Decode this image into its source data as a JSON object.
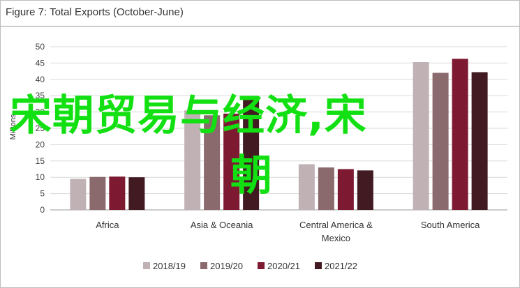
{
  "chart_data": {
    "type": "bar",
    "title": "Figure 7: Total Exports (October-June)",
    "ylabel": "Millions",
    "ylim": [
      0,
      50
    ],
    "yticks": [
      0,
      5,
      10,
      15,
      20,
      25,
      30,
      35,
      40,
      45,
      50
    ],
    "grid": true,
    "legend_position": "bottom",
    "categories": [
      "Africa",
      "Asia & Oceania",
      "Central America & Mexico",
      "South America"
    ],
    "category_lines": [
      [
        "Africa"
      ],
      [
        "Asia & Oceania"
      ],
      [
        "Central America &",
        "Mexico"
      ],
      [
        "South America"
      ]
    ],
    "series": [
      {
        "name": "2018/19",
        "color": "#c0b2b4",
        "values": [
          9.5,
          30.5,
          14.0,
          45.3
        ]
      },
      {
        "name": "2019/20",
        "color": "#8a6a6d",
        "values": [
          10.1,
          29.0,
          13.0,
          42.0
        ]
      },
      {
        "name": "2020/21",
        "color": "#7d1a32",
        "values": [
          10.2,
          29.5,
          12.5,
          46.3
        ]
      },
      {
        "name": "2021/22",
        "color": "#421a22",
        "values": [
          10.0,
          34.5,
          12.1,
          42.2
        ]
      }
    ]
  },
  "overlay": {
    "line1": "宋朝贸易与经济,宋",
    "line2": "朝"
  }
}
